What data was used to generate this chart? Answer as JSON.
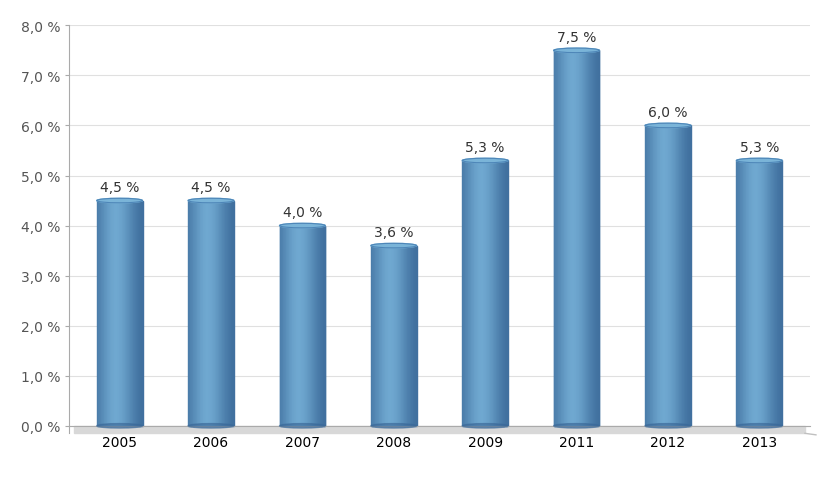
{
  "categories": [
    "2005",
    "2006",
    "2007",
    "2008",
    "2009",
    "2011",
    "2012",
    "2013"
  ],
  "values": [
    4.5,
    4.5,
    4.0,
    3.6,
    5.3,
    7.5,
    6.0,
    5.3
  ],
  "labels": [
    "4,5 %",
    "4,5 %",
    "4,0 %",
    "3,6 %",
    "5,3 %",
    "7,5 %",
    "6,0 %",
    "5,3 %"
  ],
  "bar_color_light": "#6fa8d0",
  "bar_color_mid": "#4e86b8",
  "bar_color_dark": "#3a6898",
  "bar_color_top": "#7ab4d8",
  "background_color": "#ffffff",
  "plot_bg_color": "#ffffff",
  "ylim_max": 8.0,
  "yticks": [
    0.0,
    1.0,
    2.0,
    3.0,
    4.0,
    5.0,
    6.0,
    7.0,
    8.0
  ],
  "ytick_labels": [
    "0,0 %",
    "1,0 %",
    "2,0 %",
    "3,0 %",
    "4,0 %",
    "5,0 %",
    "6,0 %",
    "7,0 %",
    "8,0 %"
  ],
  "label_fontsize": 10,
  "tick_fontsize": 10,
  "bar_width": 0.5,
  "ellipse_ratio": 0.18,
  "floor_color": "#d8d8d8",
  "floor_side_color": "#c0c0c0",
  "grid_color": "#e0e0e0",
  "spine_color": "#aaaaaa"
}
